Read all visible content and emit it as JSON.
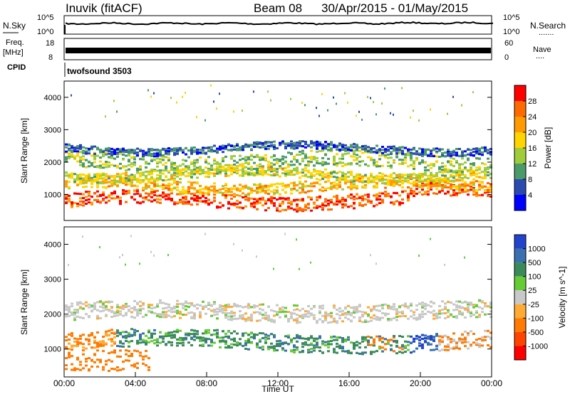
{
  "header": {
    "station": "Inuvik (fitACF)",
    "beam": "Beam 08",
    "dates": "30/Apr/2015 - 01/May/2015"
  },
  "noise_panel": {
    "left_label": "N.Sky",
    "right_label": "N.Search",
    "left_ticks": [
      "10^5",
      "10^0"
    ],
    "right_ticks": [
      "10^5",
      "10^0"
    ],
    "right_legend_dots": "......."
  },
  "freq_panel": {
    "left_label": "Freq.",
    "left_unit": "[MHz]",
    "left_ticks": [
      "18",
      "8"
    ],
    "right_label": "Nave",
    "right_ticks": [
      "60",
      "0"
    ],
    "right_legend_dots": "...."
  },
  "cpid": {
    "label": "CPID",
    "value": "twofsound 3503"
  },
  "power_colorbar": {
    "title": "Power [dB]",
    "ticks": [
      "28",
      "24",
      "20",
      "16",
      "12",
      "8",
      "4"
    ],
    "colors": [
      "#ff0000",
      "#ff6a00",
      "#ff9a00",
      "#ffd400",
      "#9ecc3a",
      "#4a9a6a",
      "#2a4ab0",
      "#0000ff"
    ]
  },
  "velocity_colorbar": {
    "title": "Velocity [m s^-1]",
    "ticks": [
      "1000",
      "500",
      "100",
      "25",
      "-25",
      "-100",
      "-500",
      "-1000"
    ],
    "colors": [
      "#2244cc",
      "#3a70b0",
      "#3a8a5a",
      "#66cc33",
      "#c8c8c8",
      "#ffaa33",
      "#ff7a00",
      "#ff4400",
      "#ff0000"
    ]
  },
  "chart_data": [
    {
      "type": "heatmap",
      "name": "power",
      "ylabel": "Slant Range [km]",
      "ylim": [
        200,
        4500
      ],
      "y_ticks": [
        1000,
        2000,
        3000,
        4000
      ],
      "xlim": [
        0,
        24
      ],
      "bands": [
        {
          "center": 850,
          "width": 220,
          "value": 27
        },
        {
          "center": 1300,
          "width": 180,
          "value": 20
        },
        {
          "center": 2050,
          "width": 260,
          "value": 13
        },
        {
          "center": 2450,
          "width": 120,
          "value": 7
        },
        {
          "center": 1650,
          "width": 160,
          "value": 16
        }
      ]
    },
    {
      "type": "heatmap",
      "name": "velocity",
      "ylabel": "Slant Range [km]",
      "ylim": [
        200,
        4500
      ],
      "y_ticks": [
        1000,
        2000,
        3000,
        4000
      ],
      "xlim": [
        0,
        24
      ],
      "x_ticks": [
        "00:00",
        "04:00",
        "08:00",
        "12:00",
        "16:00",
        "20:00",
        "00:00"
      ],
      "xlabel": "Time UT"
    }
  ]
}
